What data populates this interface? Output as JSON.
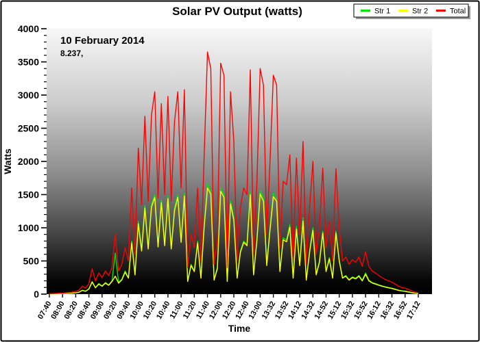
{
  "chart_data": {
    "type": "line",
    "title": "Solar PV Output (watts)",
    "xlabel": "Time",
    "ylabel": "Watts",
    "ylim": [
      0,
      4000
    ],
    "y_major_step": 500,
    "y_minor_step": 100,
    "grid": false,
    "legend_position": "top-right",
    "annotation": {
      "date": "10 February 2014",
      "value": "8.237,"
    },
    "plot_background": {
      "top_color": "#f7f7f7",
      "bottom_color": "#000000"
    },
    "x_tick_labels": [
      "07:40",
      "08:00",
      "08:20",
      "08:40",
      "09:00",
      "09:20",
      "09:40",
      "10:00",
      "10:20",
      "10:40",
      "11:00",
      "11:20",
      "11:40",
      "12:00",
      "12:20",
      "12:40",
      "13:00",
      "13:32",
      "13:52",
      "14:12",
      "14:32",
      "14:52",
      "15:12",
      "15:32",
      "15:52",
      "16:12",
      "16:32",
      "16:52",
      "17:12"
    ],
    "series": [
      {
        "name": "Str 1",
        "color": "#00e400",
        "values": [
          2,
          4,
          5,
          6,
          8,
          10,
          12,
          15,
          20,
          30,
          60,
          45,
          80,
          190,
          100,
          160,
          125,
          175,
          140,
          200,
          620,
          175,
          225,
          350,
          250,
          800,
          300,
          1100,
          680,
          1340,
          700,
          1350,
          1500,
          730,
          1420,
          750,
          1480,
          700,
          1300,
          1500,
          800,
          1520,
          200,
          450,
          350,
          800,
          250,
          1050,
          1660,
          1560,
          220,
          400,
          1600,
          1510,
          200,
          1400,
          1150,
          250,
          650,
          800,
          750,
          1550,
          300,
          820,
          1560,
          1450,
          450,
          1000,
          1520,
          1450,
          350,
          850,
          820,
          1050,
          250,
          1020,
          450,
          1150,
          220,
          650,
          1000,
          300,
          500,
          950,
          350,
          550,
          250,
          950,
          520,
          250,
          280,
          220,
          260,
          240,
          280,
          210,
          320,
          210,
          175,
          160,
          140,
          125,
          110,
          100,
          90,
          75,
          60,
          50,
          45,
          35,
          25,
          15,
          10
        ]
      },
      {
        "name": "Str 2",
        "color": "#ffff00",
        "values": [
          2,
          4,
          5,
          6,
          7,
          10,
          12,
          15,
          20,
          28,
          55,
          42,
          75,
          180,
          95,
          150,
          118,
          165,
          132,
          190,
          270,
          165,
          215,
          330,
          240,
          770,
          290,
          1060,
          650,
          1300,
          680,
          1310,
          1460,
          710,
          1380,
          730,
          1440,
          680,
          1260,
          1460,
          780,
          1480,
          190,
          430,
          340,
          770,
          240,
          1020,
          1600,
          1510,
          210,
          380,
          1550,
          1460,
          190,
          1360,
          1110,
          240,
          630,
          780,
          730,
          1500,
          290,
          800,
          1510,
          1400,
          430,
          970,
          1470,
          1400,
          340,
          820,
          790,
          1010,
          240,
          980,
          430,
          1100,
          210,
          630,
          960,
          290,
          480,
          920,
          340,
          530,
          240,
          920,
          500,
          240,
          270,
          210,
          250,
          230,
          270,
          200,
          300,
          200,
          168,
          152,
          134,
          120,
          105,
          95,
          85,
          70,
          56,
          47,
          42,
          32,
          22,
          13,
          8
        ]
      },
      {
        "name": "Total",
        "color": "#ff0000",
        "values": [
          5,
          8,
          10,
          12,
          15,
          20,
          25,
          30,
          40,
          60,
          120,
          90,
          160,
          380,
          200,
          320,
          250,
          350,
          280,
          400,
          900,
          350,
          450,
          700,
          500,
          1600,
          600,
          2200,
          1350,
          2680,
          1400,
          2700,
          3050,
          1450,
          2870,
          1500,
          2980,
          1400,
          2600,
          3050,
          1600,
          3080,
          400,
          900,
          700,
          1600,
          500,
          2100,
          3650,
          3400,
          450,
          800,
          3480,
          3300,
          400,
          3050,
          2300,
          500,
          1300,
          1600,
          1500,
          3380,
          600,
          1650,
          3400,
          3150,
          900,
          2000,
          3300,
          3150,
          700,
          1700,
          1650,
          2100,
          500,
          2050,
          900,
          2300,
          450,
          1300,
          2000,
          600,
          1000,
          1900,
          700,
          1100,
          500,
          1890,
          1000,
          500,
          560,
          450,
          520,
          480,
          560,
          420,
          640,
          420,
          350,
          320,
          280,
          250,
          220,
          200,
          180,
          150,
          120,
          100,
          90,
          70,
          50,
          30,
          20
        ]
      }
    ]
  }
}
